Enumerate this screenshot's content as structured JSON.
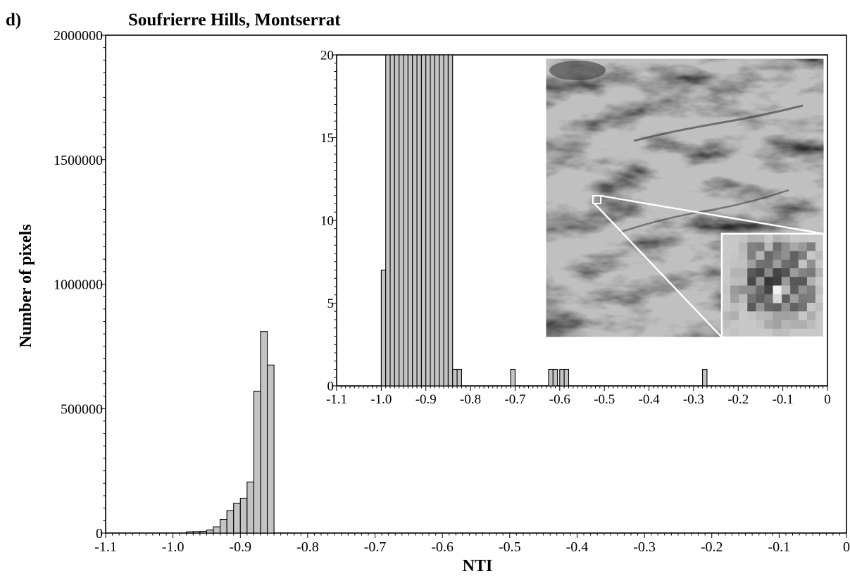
{
  "panel_label": "d)",
  "title": "Soufrierre Hills, Montserrat",
  "colors": {
    "bar_fill": "#c4c4c4",
    "bar_stroke": "#000000",
    "axis": "#000000",
    "background": "#ffffff"
  },
  "chart_data": [
    {
      "type": "bar",
      "title": "Soufrierre Hills, Montserrat",
      "xlabel": "NTI",
      "ylabel": "Number of pixels",
      "xlim": [
        -1.1,
        0
      ],
      "ylim": [
        0,
        2000000
      ],
      "xticks": [
        "-1.1",
        "-1.0",
        "-0.9",
        "-0.8",
        "-0.7",
        "-0.6",
        "-0.5",
        "-0.4",
        "-0.3",
        "-0.2",
        "-0.1",
        "0"
      ],
      "yticks": [
        "0",
        "500000",
        "1000000",
        "1500000",
        "2000000"
      ],
      "bin_width": 0.01,
      "bins": [
        {
          "x0": -0.98,
          "value": 5000
        },
        {
          "x0": -0.97,
          "value": 6000
        },
        {
          "x0": -0.96,
          "value": 7000
        },
        {
          "x0": -0.95,
          "value": 12000
        },
        {
          "x0": -0.94,
          "value": 25000
        },
        {
          "x0": -0.93,
          "value": 55000
        },
        {
          "x0": -0.92,
          "value": 90000
        },
        {
          "x0": -0.91,
          "value": 120000
        },
        {
          "x0": -0.9,
          "value": 140000
        },
        {
          "x0": -0.89,
          "value": 205000
        },
        {
          "x0": -0.88,
          "value": 570000
        },
        {
          "x0": -0.87,
          "value": 810000
        },
        {
          "x0": -0.86,
          "value": 675000
        }
      ],
      "grid": false
    },
    {
      "type": "bar",
      "inset": true,
      "xlim": [
        -1.1,
        0
      ],
      "ylim": [
        0,
        20
      ],
      "xticks": [
        "-1.1",
        "-1.0",
        "-0.9",
        "-0.8",
        "-0.7",
        "-0.6",
        "-0.5",
        "-0.4",
        "-0.3",
        "-0.2",
        "-0.1",
        "0"
      ],
      "yticks": [
        "0",
        "5",
        "10",
        "15",
        "20"
      ],
      "bin_width": 0.01,
      "bins": [
        {
          "x0": -1.0,
          "value": 7
        },
        {
          "x0": -0.99,
          "value": 20
        },
        {
          "x0": -0.98,
          "value": 20
        },
        {
          "x0": -0.97,
          "value": 20
        },
        {
          "x0": -0.96,
          "value": 20
        },
        {
          "x0": -0.95,
          "value": 20
        },
        {
          "x0": -0.94,
          "value": 20
        },
        {
          "x0": -0.93,
          "value": 20
        },
        {
          "x0": -0.92,
          "value": 20
        },
        {
          "x0": -0.91,
          "value": 20
        },
        {
          "x0": -0.9,
          "value": 20
        },
        {
          "x0": -0.89,
          "value": 20
        },
        {
          "x0": -0.88,
          "value": 20
        },
        {
          "x0": -0.87,
          "value": 20
        },
        {
          "x0": -0.86,
          "value": 20
        },
        {
          "x0": -0.85,
          "value": 20
        },
        {
          "x0": -0.84,
          "value": 1
        },
        {
          "x0": -0.83,
          "value": 1
        },
        {
          "x0": -0.71,
          "value": 1
        },
        {
          "x0": -0.625,
          "value": 1
        },
        {
          "x0": -0.615,
          "value": 1
        },
        {
          "x0": -0.6,
          "value": 1
        },
        {
          "x0": -0.59,
          "value": 1
        },
        {
          "x0": -0.28,
          "value": 1
        }
      ],
      "grid": false
    }
  ]
}
